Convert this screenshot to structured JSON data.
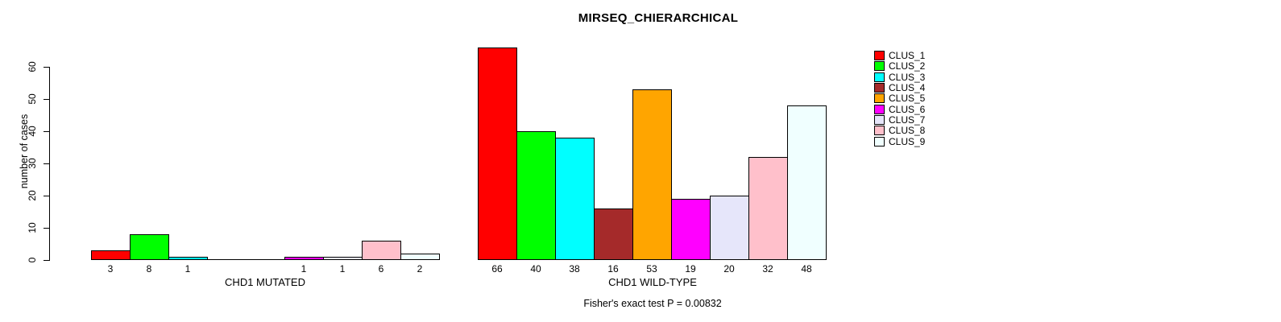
{
  "chart_data": {
    "type": "bar",
    "title": "MIRSEQ_CHIERARCHICAL",
    "ylabel": "number of cases",
    "ylim": [
      0,
      60
    ],
    "yticks": [
      0,
      10,
      20,
      30,
      40,
      50,
      60
    ],
    "grid": false,
    "legend_position": "right",
    "series_names": [
      "CLUS_1",
      "CLUS_2",
      "CLUS_3",
      "CLUS_4",
      "CLUS_5",
      "CLUS_6",
      "CLUS_7",
      "CLUS_8",
      "CLUS_9"
    ],
    "palette": [
      "#ff0000",
      "#00ff00",
      "#00ffff",
      "#a52a2a",
      "#ffa500",
      "#ff00ff",
      "#e6e6fa",
      "#ffc0cb",
      "#f0ffff"
    ],
    "groups": [
      {
        "label": "CHD1 MUTATED",
        "values": [
          3,
          8,
          1,
          0,
          0,
          1,
          1,
          6,
          2
        ]
      },
      {
        "label": "CHD1 WILD-TYPE",
        "values": [
          66,
          40,
          38,
          16,
          53,
          19,
          20,
          32,
          48
        ]
      }
    ],
    "bar_value_labels_note": "zero values have no bar and no label",
    "footnote": "Fisher's exact test P = 0.00832"
  }
}
